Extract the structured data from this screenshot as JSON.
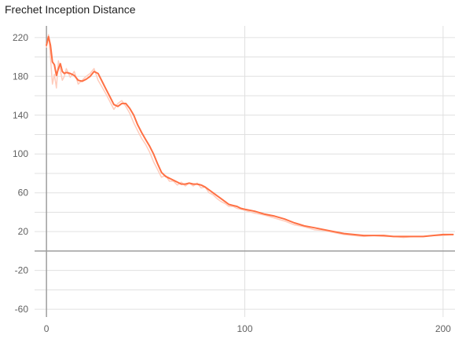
{
  "chart_data": {
    "type": "line",
    "title": "Frechet Inception Distance",
    "xlabel": "",
    "ylabel": "",
    "xlim": [
      -6,
      206
    ],
    "ylim": [
      -68,
      232
    ],
    "grid": true,
    "x_ticks": [
      0,
      100,
      200
    ],
    "y_ticks": [
      220,
      180,
      140,
      100,
      60,
      20,
      -20,
      -60
    ],
    "y_minor_ticks": [
      200,
      160,
      120,
      80,
      40,
      0,
      -40
    ],
    "colors": {
      "smoothed": "#ff7043",
      "raw": "#ffccbc",
      "grid": "#e0e0e0",
      "axis": "#9e9e9e"
    },
    "series": [
      {
        "smoothed": true,
        "x": [
          0,
          1,
          2,
          3,
          4,
          5,
          6,
          7,
          8,
          9,
          10,
          12,
          14,
          16,
          18,
          20,
          22,
          24,
          26,
          28,
          30,
          32,
          34,
          36,
          38,
          40,
          42,
          44,
          46,
          48,
          50,
          52,
          54,
          56,
          58,
          60,
          62,
          64,
          66,
          68,
          70,
          72,
          74,
          76,
          78,
          80,
          82,
          84,
          86,
          88,
          90,
          92,
          94,
          96,
          98,
          100,
          105,
          110,
          115,
          120,
          125,
          130,
          135,
          140,
          145,
          150,
          155,
          160,
          165,
          170,
          175,
          180,
          185,
          190,
          195,
          200,
          205
        ],
        "y": [
          212,
          221,
          212,
          195,
          192,
          181,
          188,
          193,
          185,
          183,
          184,
          183,
          181,
          176,
          175,
          177,
          180,
          185,
          183,
          175,
          167,
          159,
          151,
          149,
          152,
          152,
          147,
          140,
          130,
          122,
          115,
          108,
          100,
          90,
          81,
          77,
          75,
          73,
          71,
          69,
          69,
          70,
          69,
          69,
          68,
          66,
          63,
          60,
          57,
          54,
          51,
          48,
          47,
          46,
          44,
          43,
          41,
          38,
          36,
          33,
          29,
          26,
          24,
          22,
          20,
          18,
          17,
          16,
          16,
          16,
          15,
          15,
          15,
          15,
          16,
          17,
          17
        ]
      },
      {
        "smoothed": false,
        "x": [
          0,
          1,
          2,
          3,
          4,
          5,
          6,
          7,
          8,
          9,
          10,
          12,
          14,
          16,
          18,
          20,
          22,
          24,
          26,
          28,
          30,
          32,
          34,
          36,
          38,
          40,
          42,
          44,
          46,
          48,
          50,
          52,
          54,
          56,
          58,
          60,
          62,
          64,
          66,
          68,
          70,
          72,
          74,
          76,
          78,
          80,
          82,
          84,
          86,
          88,
          90,
          92,
          94,
          96,
          98,
          100,
          105,
          110,
          115,
          120,
          125,
          130,
          135,
          140,
          145,
          150,
          155,
          160,
          165,
          170,
          175,
          180,
          185,
          190,
          195,
          200,
          205
        ],
        "y": [
          210,
          223,
          200,
          172,
          182,
          168,
          196,
          186,
          176,
          180,
          188,
          179,
          185,
          172,
          176,
          180,
          183,
          188,
          176,
          169,
          162,
          154,
          146,
          152,
          155,
          149,
          142,
          132,
          124,
          116,
          110,
          102,
          92,
          84,
          76,
          78,
          72,
          72,
          68,
          71,
          67,
          70,
          67,
          70,
          65,
          66,
          60,
          58,
          54,
          51,
          49,
          46,
          46,
          44,
          43,
          42,
          39,
          37,
          34,
          31,
          27,
          25,
          22,
          21,
          19,
          17,
          16,
          15,
          16,
          15,
          15,
          14,
          15,
          15,
          16,
          16,
          17
        ]
      }
    ]
  }
}
